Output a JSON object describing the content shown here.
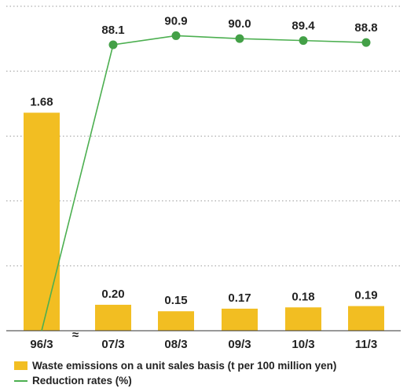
{
  "chart_data": {
    "type": "bar+line",
    "categories": [
      "96/3",
      "07/3",
      "08/3",
      "09/3",
      "10/3",
      "11/3"
    ],
    "axis_break_after_index": 0,
    "axis_break_symbol": "≈",
    "series": [
      {
        "name": "Waste emissions on a unit sales basis (t per 100 million yen)",
        "kind": "bar",
        "values": [
          1.68,
          0.2,
          0.15,
          0.17,
          0.18,
          0.19
        ],
        "labels": [
          "1.68",
          "0.20",
          "0.15",
          "0.17",
          "0.18",
          "0.19"
        ],
        "color": "#F2BE22",
        "ylim": [
          0,
          2.5
        ]
      },
      {
        "name": "Reduction rates (%)",
        "kind": "line",
        "values": [
          0,
          88.1,
          90.9,
          90.0,
          89.4,
          88.8
        ],
        "labels": [
          "",
          "88.1",
          "90.9",
          "90.0",
          "89.4",
          "88.8"
        ],
        "color": "#4CAF50",
        "marker_color": "#43A047",
        "ylim": [
          0,
          100
        ]
      }
    ],
    "grid": "dotted-horizontal",
    "gridline_values": [
      0.5,
      1.0,
      1.5,
      2.0,
      2.5
    ],
    "legend_placement": "bottom-left",
    "title": "",
    "xlabel": "",
    "ylabel": ""
  },
  "legend": {
    "bar_label": "Waste emissions on a unit sales basis (t per 100 million yen)",
    "line_label": "Reduction rates (%)"
  }
}
